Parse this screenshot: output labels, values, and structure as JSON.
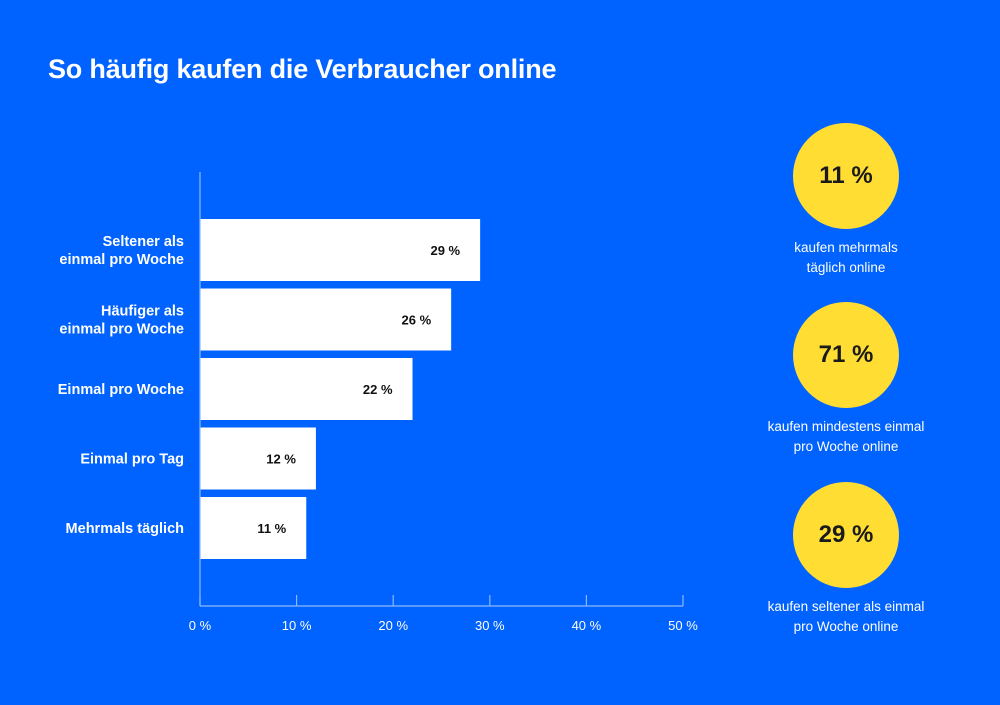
{
  "title": "So häufig kaufen die Verbraucher online",
  "colors": {
    "background": "#0062FF",
    "bar": "#FFFFFF",
    "axis": "#8DB8FF",
    "highlight_circle": "#FFDD33",
    "value_text": "#111111"
  },
  "chart_data": {
    "type": "bar",
    "orientation": "horizontal",
    "title": "So häufig kaufen die Verbraucher online",
    "categories": [
      "Seltener als einmal pro Woche",
      "Häufiger als einmal pro Woche",
      "Einmal pro Woche",
      "Einmal pro Tag",
      "Mehrmals täglich"
    ],
    "category_lines": [
      [
        "Seltener als",
        "einmal pro Woche"
      ],
      [
        "Häufiger als",
        "einmal pro Woche"
      ],
      [
        "Einmal pro Woche"
      ],
      [
        "Einmal pro Tag"
      ],
      [
        "Mehrmals täglich"
      ]
    ],
    "values": [
      29,
      26,
      22,
      12,
      11
    ],
    "value_labels": [
      "29 %",
      "26 %",
      "22 %",
      "12 %",
      "11 %"
    ],
    "xlabel": "",
    "ylabel": "",
    "xlim": [
      0,
      50
    ],
    "xticks": [
      0,
      10,
      20,
      30,
      40,
      50
    ],
    "xtick_labels": [
      "0 %",
      "10 %",
      "20 %",
      "30 %",
      "40 %",
      "50 %"
    ],
    "grid": false,
    "legend": "none"
  },
  "highlights": [
    {
      "value": "11 %",
      "caption": "kaufen mehrmals\ntäglich online"
    },
    {
      "value": "71 %",
      "caption": "kaufen mindestens einmal\npro Woche online"
    },
    {
      "value": "29 %",
      "caption": "kaufen seltener als einmal\npro Woche online"
    }
  ]
}
